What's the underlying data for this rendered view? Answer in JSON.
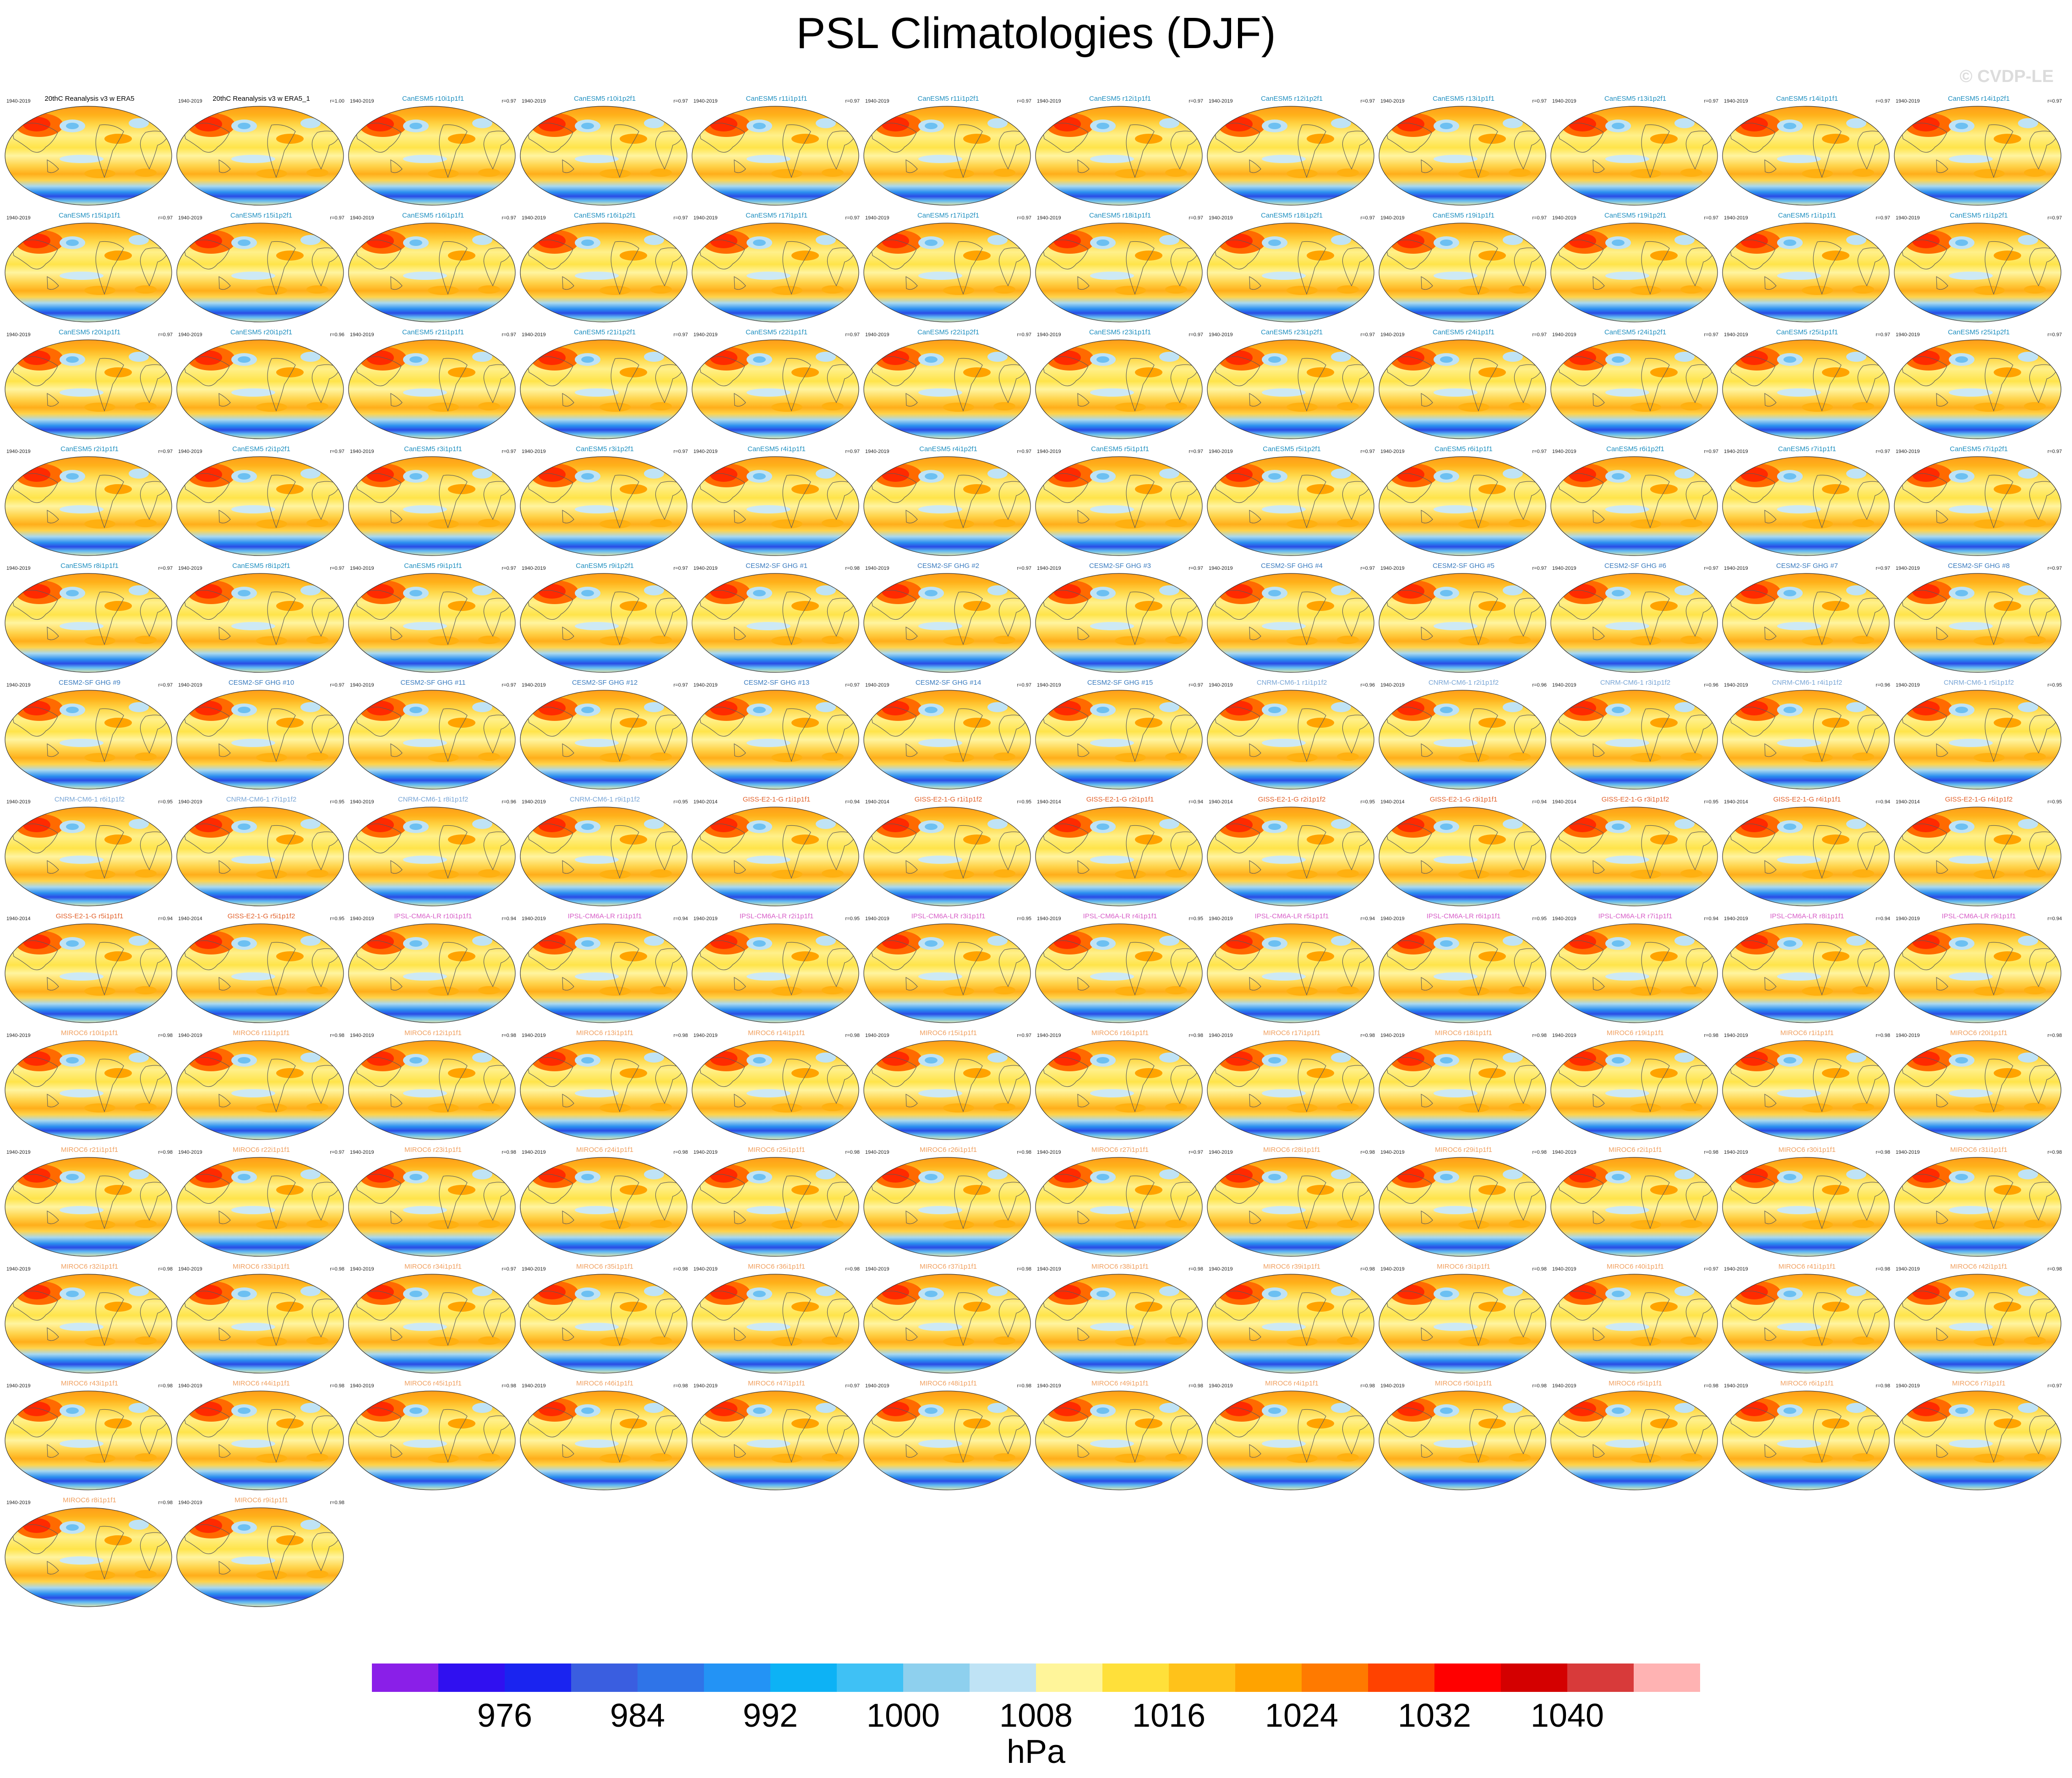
{
  "title": "PSL Climatologies (DJF)",
  "watermark": "© CVDP-LE",
  "colorbar": {
    "unit": "hPa",
    "tick_labels": [
      "976",
      "984",
      "992",
      "1000",
      "1008",
      "1016",
      "1024",
      "1032",
      "1040"
    ],
    "colors": [
      "#8a1fe8",
      "#3010f0",
      "#1a24f0",
      "#3a5ee0",
      "#2f74e8",
      "#2393f5",
      "#0db2f5",
      "#3fc1f5",
      "#8ed0ee",
      "#bfe3f5",
      "#fff59a",
      "#ffe03a",
      "#ffc21a",
      "#ffa300",
      "#ff7a00",
      "#ff4200",
      "#ff0000",
      "#d40000",
      "#d83a3a",
      "#ffb3b3"
    ]
  },
  "chart_data": {
    "type": "heatmap",
    "title": "PSL Climatologies (DJF)",
    "variable": "PSL",
    "season": "DJF",
    "unit": "hPa",
    "contour_levels": [
      972,
      976,
      980,
      984,
      988,
      992,
      996,
      1000,
      1004,
      1008,
      1012,
      1016,
      1020,
      1024,
      1028,
      1032,
      1036,
      1040,
      1044
    ],
    "colorbar_ticks": [
      976,
      984,
      992,
      1000,
      1008,
      1016,
      1024,
      1032,
      1040
    ],
    "panels": [
      {
        "title": "20thC Reanalysis v3 w ERA5",
        "period": "1940-2019",
        "r": ""
      },
      {
        "title": "20thC Reanalysis v3 w ERA5_1",
        "period": "1940-2019",
        "r": "r=1.00"
      },
      {
        "title": "CanESM5 r10i1p1f1",
        "period": "1940-2019",
        "r": "r=0.97"
      },
      {
        "title": "CanESM5 r10i1p2f1",
        "period": "1940-2019",
        "r": "r=0.97"
      },
      {
        "title": "CanESM5 r11i1p1f1",
        "period": "1940-2019",
        "r": "r=0.97"
      },
      {
        "title": "CanESM5 r11i1p2f1",
        "period": "1940-2019",
        "r": "r=0.97"
      },
      {
        "title": "CanESM5 r12i1p1f1",
        "period": "1940-2019",
        "r": "r=0.97"
      },
      {
        "title": "CanESM5 r12i1p2f1",
        "period": "1940-2019",
        "r": "r=0.97"
      },
      {
        "title": "CanESM5 r13i1p1f1",
        "period": "1940-2019",
        "r": "r=0.97"
      },
      {
        "title": "CanESM5 r13i1p2f1",
        "period": "1940-2019",
        "r": "r=0.97"
      },
      {
        "title": "CanESM5 r14i1p1f1",
        "period": "1940-2019",
        "r": "r=0.97"
      },
      {
        "title": "CanESM5 r14i1p2f1",
        "period": "1940-2019",
        "r": "r=0.97"
      },
      {
        "title": "CanESM5 r15i1p1f1",
        "period": "1940-2019",
        "r": "r=0.97"
      },
      {
        "title": "CanESM5 r15i1p2f1",
        "period": "1940-2019",
        "r": "r=0.97"
      },
      {
        "title": "CanESM5 r16i1p1f1",
        "period": "1940-2019",
        "r": "r=0.97"
      },
      {
        "title": "CanESM5 r16i1p2f1",
        "period": "1940-2019",
        "r": "r=0.97"
      },
      {
        "title": "CanESM5 r17i1p1f1",
        "period": "1940-2019",
        "r": "r=0.97"
      },
      {
        "title": "CanESM5 r17i1p2f1",
        "period": "1940-2019",
        "r": "r=0.97"
      },
      {
        "title": "CanESM5 r18i1p1f1",
        "period": "1940-2019",
        "r": "r=0.97"
      },
      {
        "title": "CanESM5 r18i1p2f1",
        "period": "1940-2019",
        "r": "r=0.97"
      },
      {
        "title": "CanESM5 r19i1p1f1",
        "period": "1940-2019",
        "r": "r=0.97"
      },
      {
        "title": "CanESM5 r19i1p2f1",
        "period": "1940-2019",
        "r": "r=0.97"
      },
      {
        "title": "CanESM5 r1i1p1f1",
        "period": "1940-2019",
        "r": "r=0.97"
      },
      {
        "title": "CanESM5 r1i1p2f1",
        "period": "1940-2019",
        "r": "r=0.97"
      },
      {
        "title": "CanESM5 r20i1p1f1",
        "period": "1940-2019",
        "r": "r=0.97"
      },
      {
        "title": "CanESM5 r20i1p2f1",
        "period": "1940-2019",
        "r": "r=0.96"
      },
      {
        "title": "CanESM5 r21i1p1f1",
        "period": "1940-2019",
        "r": "r=0.97"
      },
      {
        "title": "CanESM5 r21i1p2f1",
        "period": "1940-2019",
        "r": "r=0.97"
      },
      {
        "title": "CanESM5 r22i1p1f1",
        "period": "1940-2019",
        "r": "r=0.97"
      },
      {
        "title": "CanESM5 r22i1p2f1",
        "period": "1940-2019",
        "r": "r=0.97"
      },
      {
        "title": "CanESM5 r23i1p1f1",
        "period": "1940-2019",
        "r": "r=0.97"
      },
      {
        "title": "CanESM5 r23i1p2f1",
        "period": "1940-2019",
        "r": "r=0.97"
      },
      {
        "title": "CanESM5 r24i1p1f1",
        "period": "1940-2019",
        "r": "r=0.97"
      },
      {
        "title": "CanESM5 r24i1p2f1",
        "period": "1940-2019",
        "r": "r=0.97"
      },
      {
        "title": "CanESM5 r25i1p1f1",
        "period": "1940-2019",
        "r": "r=0.97"
      },
      {
        "title": "CanESM5 r25i1p2f1",
        "period": "1940-2019",
        "r": "r=0.97"
      },
      {
        "title": "CanESM5 r2i1p1f1",
        "period": "1940-2019",
        "r": "r=0.97"
      },
      {
        "title": "CanESM5 r2i1p2f1",
        "period": "1940-2019",
        "r": "r=0.97"
      },
      {
        "title": "CanESM5 r3i1p1f1",
        "period": "1940-2019",
        "r": "r=0.97"
      },
      {
        "title": "CanESM5 r3i1p2f1",
        "period": "1940-2019",
        "r": "r=0.97"
      },
      {
        "title": "CanESM5 r4i1p1f1",
        "period": "1940-2019",
        "r": "r=0.97"
      },
      {
        "title": "CanESM5 r4i1p2f1",
        "period": "1940-2019",
        "r": "r=0.97"
      },
      {
        "title": "CanESM5 r5i1p1f1",
        "period": "1940-2019",
        "r": "r=0.97"
      },
      {
        "title": "CanESM5 r5i1p2f1",
        "period": "1940-2019",
        "r": "r=0.97"
      },
      {
        "title": "CanESM5 r6i1p1f1",
        "period": "1940-2019",
        "r": "r=0.97"
      },
      {
        "title": "CanESM5 r6i1p2f1",
        "period": "1940-2019",
        "r": "r=0.97"
      },
      {
        "title": "CanESM5 r7i1p1f1",
        "period": "1940-2019",
        "r": "r=0.97"
      },
      {
        "title": "CanESM5 r7i1p2f1",
        "period": "1940-2019",
        "r": "r=0.97"
      },
      {
        "title": "CanESM5 r8i1p1f1",
        "period": "1940-2019",
        "r": "r=0.97"
      },
      {
        "title": "CanESM5 r8i1p2f1",
        "period": "1940-2019",
        "r": "r=0.97"
      },
      {
        "title": "CanESM5 r9i1p1f1",
        "period": "1940-2019",
        "r": "r=0.97"
      },
      {
        "title": "CanESM5 r9i1p2f1",
        "period": "1940-2019",
        "r": "r=0.97"
      },
      {
        "title": "CESM2-SF GHG #1",
        "period": "1940-2019",
        "r": "r=0.98"
      },
      {
        "title": "CESM2-SF GHG #2",
        "period": "1940-2019",
        "r": "r=0.97"
      },
      {
        "title": "CESM2-SF GHG #3",
        "period": "1940-2019",
        "r": "r=0.97"
      },
      {
        "title": "CESM2-SF GHG #4",
        "period": "1940-2019",
        "r": "r=0.97"
      },
      {
        "title": "CESM2-SF GHG #5",
        "period": "1940-2019",
        "r": "r=0.97"
      },
      {
        "title": "CESM2-SF GHG #6",
        "period": "1940-2019",
        "r": "r=0.97"
      },
      {
        "title": "CESM2-SF GHG #7",
        "period": "1940-2019",
        "r": "r=0.97"
      },
      {
        "title": "CESM2-SF GHG #8",
        "period": "1940-2019",
        "r": "r=0.97"
      },
      {
        "title": "CESM2-SF GHG #9",
        "period": "1940-2019",
        "r": "r=0.97"
      },
      {
        "title": "CESM2-SF GHG #10",
        "period": "1940-2019",
        "r": "r=0.97"
      },
      {
        "title": "CESM2-SF GHG #11",
        "period": "1940-2019",
        "r": "r=0.97"
      },
      {
        "title": "CESM2-SF GHG #12",
        "period": "1940-2019",
        "r": "r=0.97"
      },
      {
        "title": "CESM2-SF GHG #13",
        "period": "1940-2019",
        "r": "r=0.97"
      },
      {
        "title": "CESM2-SF GHG #14",
        "period": "1940-2019",
        "r": "r=0.97"
      },
      {
        "title": "CESM2-SF GHG #15",
        "period": "1940-2019",
        "r": "r=0.97"
      },
      {
        "title": "CNRM-CM6-1 r1i1p1f2",
        "period": "1940-2019",
        "r": "r=0.96"
      },
      {
        "title": "CNRM-CM6-1 r2i1p1f2",
        "period": "1940-2019",
        "r": "r=0.96"
      },
      {
        "title": "CNRM-CM6-1 r3i1p1f2",
        "period": "1940-2019",
        "r": "r=0.96"
      },
      {
        "title": "CNRM-CM6-1 r4i1p1f2",
        "period": "1940-2019",
        "r": "r=0.96"
      },
      {
        "title": "CNRM-CM6-1 r5i1p1f2",
        "period": "1940-2019",
        "r": "r=0.95"
      },
      {
        "title": "CNRM-CM6-1 r6i1p1f2",
        "period": "1940-2019",
        "r": "r=0.95"
      },
      {
        "title": "CNRM-CM6-1 r7i1p1f2",
        "period": "1940-2019",
        "r": "r=0.95"
      },
      {
        "title": "CNRM-CM6-1 r8i1p1f2",
        "period": "1940-2019",
        "r": "r=0.96"
      },
      {
        "title": "CNRM-CM6-1 r9i1p1f2",
        "period": "1940-2019",
        "r": "r=0.95"
      },
      {
        "title": "GISS-E2-1-G r1i1p1f1",
        "period": "1940-2014",
        "r": "r=0.94"
      },
      {
        "title": "GISS-E2-1-G r1i1p1f2",
        "period": "1940-2014",
        "r": "r=0.95"
      },
      {
        "title": "GISS-E2-1-G r2i1p1f1",
        "period": "1940-2014",
        "r": "r=0.94"
      },
      {
        "title": "GISS-E2-1-G r2i1p1f2",
        "period": "1940-2014",
        "r": "r=0.95"
      },
      {
        "title": "GISS-E2-1-G r3i1p1f1",
        "period": "1940-2014",
        "r": "r=0.94"
      },
      {
        "title": "GISS-E2-1-G r3i1p1f2",
        "period": "1940-2014",
        "r": "r=0.95"
      },
      {
        "title": "GISS-E2-1-G r4i1p1f1",
        "period": "1940-2014",
        "r": "r=0.94"
      },
      {
        "title": "GISS-E2-1-G r4i1p1f2",
        "period": "1940-2014",
        "r": "r=0.95"
      },
      {
        "title": "GISS-E2-1-G r5i1p1f1",
        "period": "1940-2014",
        "r": "r=0.94"
      },
      {
        "title": "GISS-E2-1-G r5i1p1f2",
        "period": "1940-2014",
        "r": "r=0.95"
      },
      {
        "title": "IPSL-CM6A-LR r10i1p1f1",
        "period": "1940-2019",
        "r": "r=0.94"
      },
      {
        "title": "IPSL-CM6A-LR r1i1p1f1",
        "period": "1940-2019",
        "r": "r=0.94"
      },
      {
        "title": "IPSL-CM6A-LR r2i1p1f1",
        "period": "1940-2019",
        "r": "r=0.95"
      },
      {
        "title": "IPSL-CM6A-LR r3i1p1f1",
        "period": "1940-2019",
        "r": "r=0.95"
      },
      {
        "title": "IPSL-CM6A-LR r4i1p1f1",
        "period": "1940-2019",
        "r": "r=0.95"
      },
      {
        "title": "IPSL-CM6A-LR r5i1p1f1",
        "period": "1940-2019",
        "r": "r=0.94"
      },
      {
        "title": "IPSL-CM6A-LR r6i1p1f1",
        "period": "1940-2019",
        "r": "r=0.95"
      },
      {
        "title": "IPSL-CM6A-LR r7i1p1f1",
        "period": "1940-2019",
        "r": "r=0.94"
      },
      {
        "title": "IPSL-CM6A-LR r8i1p1f1",
        "period": "1940-2019",
        "r": "r=0.94"
      },
      {
        "title": "IPSL-CM6A-LR r9i1p1f1",
        "period": "1940-2019",
        "r": "r=0.94"
      },
      {
        "title": "MIROC6 r10i1p1f1",
        "period": "1940-2019",
        "r": "r=0.98"
      },
      {
        "title": "MIROC6 r11i1p1f1",
        "period": "1940-2019",
        "r": "r=0.98"
      },
      {
        "title": "MIROC6 r12i1p1f1",
        "period": "1940-2019",
        "r": "r=0.98"
      },
      {
        "title": "MIROC6 r13i1p1f1",
        "period": "1940-2019",
        "r": "r=0.98"
      },
      {
        "title": "MIROC6 r14i1p1f1",
        "period": "1940-2019",
        "r": "r=0.98"
      },
      {
        "title": "MIROC6 r15i1p1f1",
        "period": "1940-2019",
        "r": "r=0.97"
      },
      {
        "title": "MIROC6 r16i1p1f1",
        "period": "1940-2019",
        "r": "r=0.98"
      },
      {
        "title": "MIROC6 r17i1p1f1",
        "period": "1940-2019",
        "r": "r=0.98"
      },
      {
        "title": "MIROC6 r18i1p1f1",
        "period": "1940-2019",
        "r": "r=0.98"
      },
      {
        "title": "MIROC6 r19i1p1f1",
        "period": "1940-2019",
        "r": "r=0.98"
      },
      {
        "title": "MIROC6 r1i1p1f1",
        "period": "1940-2019",
        "r": "r=0.98"
      },
      {
        "title": "MIROC6 r20i1p1f1",
        "period": "1940-2019",
        "r": "r=0.98"
      },
      {
        "title": "MIROC6 r21i1p1f1",
        "period": "1940-2019",
        "r": "r=0.98"
      },
      {
        "title": "MIROC6 r22i1p1f1",
        "period": "1940-2019",
        "r": "r=0.97"
      },
      {
        "title": "MIROC6 r23i1p1f1",
        "period": "1940-2019",
        "r": "r=0.98"
      },
      {
        "title": "MIROC6 r24i1p1f1",
        "period": "1940-2019",
        "r": "r=0.98"
      },
      {
        "title": "MIROC6 r25i1p1f1",
        "period": "1940-2019",
        "r": "r=0.98"
      },
      {
        "title": "MIROC6 r26i1p1f1",
        "period": "1940-2019",
        "r": "r=0.98"
      },
      {
        "title": "MIROC6 r27i1p1f1",
        "period": "1940-2019",
        "r": "r=0.97"
      },
      {
        "title": "MIROC6 r28i1p1f1",
        "period": "1940-2019",
        "r": "r=0.98"
      },
      {
        "title": "MIROC6 r29i1p1f1",
        "period": "1940-2019",
        "r": "r=0.98"
      },
      {
        "title": "MIROC6 r2i1p1f1",
        "period": "1940-2019",
        "r": "r=0.98"
      },
      {
        "title": "MIROC6 r30i1p1f1",
        "period": "1940-2019",
        "r": "r=0.98"
      },
      {
        "title": "MIROC6 r31i1p1f1",
        "period": "1940-2019",
        "r": "r=0.98"
      },
      {
        "title": "MIROC6 r32i1p1f1",
        "period": "1940-2019",
        "r": "r=0.98"
      },
      {
        "title": "MIROC6 r33i1p1f1",
        "period": "1940-2019",
        "r": "r=0.98"
      },
      {
        "title": "MIROC6 r34i1p1f1",
        "period": "1940-2019",
        "r": "r=0.97"
      },
      {
        "title": "MIROC6 r35i1p1f1",
        "period": "1940-2019",
        "r": "r=0.98"
      },
      {
        "title": "MIROC6 r36i1p1f1",
        "period": "1940-2019",
        "r": "r=0.98"
      },
      {
        "title": "MIROC6 r37i1p1f1",
        "period": "1940-2019",
        "r": "r=0.98"
      },
      {
        "title": "MIROC6 r38i1p1f1",
        "period": "1940-2019",
        "r": "r=0.98"
      },
      {
        "title": "MIROC6 r39i1p1f1",
        "period": "1940-2019",
        "r": "r=0.98"
      },
      {
        "title": "MIROC6 r3i1p1f1",
        "period": "1940-2019",
        "r": "r=0.98"
      },
      {
        "title": "MIROC6 r40i1p1f1",
        "period": "1940-2019",
        "r": "r=0.97"
      },
      {
        "title": "MIROC6 r41i1p1f1",
        "period": "1940-2019",
        "r": "r=0.98"
      },
      {
        "title": "MIROC6 r42i1p1f1",
        "period": "1940-2019",
        "r": "r=0.98"
      },
      {
        "title": "MIROC6 r43i1p1f1",
        "period": "1940-2019",
        "r": "r=0.98"
      },
      {
        "title": "MIROC6 r44i1p1f1",
        "period": "1940-2019",
        "r": "r=0.98"
      },
      {
        "title": "MIROC6 r45i1p1f1",
        "period": "1940-2019",
        "r": "r=0.98"
      },
      {
        "title": "MIROC6 r46i1p1f1",
        "period": "1940-2019",
        "r": "r=0.98"
      },
      {
        "title": "MIROC6 r47i1p1f1",
        "period": "1940-2019",
        "r": "r=0.97"
      },
      {
        "title": "MIROC6 r48i1p1f1",
        "period": "1940-2019",
        "r": "r=0.98"
      },
      {
        "title": "MIROC6 r49i1p1f1",
        "period": "1940-2019",
        "r": "r=0.98"
      },
      {
        "title": "MIROC6 r4i1p1f1",
        "period": "1940-2019",
        "r": "r=0.98"
      },
      {
        "title": "MIROC6 r50i1p1f1",
        "period": "1940-2019",
        "r": "r=0.98"
      },
      {
        "title": "MIROC6 r5i1p1f1",
        "period": "1940-2019",
        "r": "r=0.98"
      },
      {
        "title": "MIROC6 r6i1p1f1",
        "period": "1940-2019",
        "r": "r=0.98"
      },
      {
        "title": "MIROC6 r7i1p1f1",
        "period": "1940-2019",
        "r": "r=0.97"
      },
      {
        "title": "MIROC6 r8i1p1f1",
        "period": "1940-2019",
        "r": "r=0.98"
      },
      {
        "title": "MIROC6 r9i1p1f1",
        "period": "1940-2019",
        "r": "r=0.98"
      }
    ]
  },
  "model_colors": {
    "obs": "#000000",
    "CanESM5": "#1f8fc0",
    "CESM2-SF GHG": "#3a7bbf",
    "CNRM-CM6-1": "#7aa6d6",
    "GISS-E2-1-G": "#e2622c",
    "IPSL-CM6A-LR": "#d860c8",
    "MIROC6": "#f0a060"
  }
}
